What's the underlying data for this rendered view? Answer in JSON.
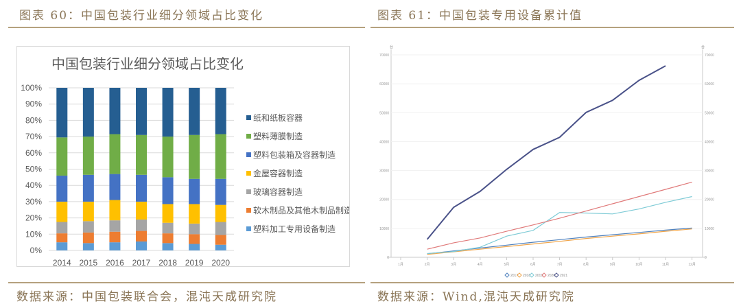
{
  "left_figure": {
    "caption": "图表 60：中国包装行业细分领域占比变化",
    "source": "数据来源：中国包装联合会，混沌天成研究院"
  },
  "right_figure": {
    "caption": "图表 61：中国包装专用设备累计值",
    "source": "数据来源：Wind,混沌天成研究院"
  },
  "chart_data": [
    {
      "type": "bar",
      "stacked": true,
      "percent": true,
      "title": "中国包装行业细分领域占比变化",
      "xlabel": "",
      "ylabel": "",
      "ylim": [
        0,
        100
      ],
      "yticks": [
        "0%",
        "10%",
        "20%",
        "30%",
        "40%",
        "50%",
        "60%",
        "70%",
        "80%",
        "90%",
        "100%"
      ],
      "categories": [
        "2014",
        "2015",
        "2016",
        "2017",
        "2018",
        "2019",
        "2020"
      ],
      "legend_position": "right",
      "grid": true,
      "series": [
        {
          "name": "塑料加工专用设备制造",
          "color": "#5b9bd5",
          "values": [
            5,
            4.5,
            5,
            5.5,
            4.5,
            4,
            3.5
          ]
        },
        {
          "name": "软木制品及其他木制品制造",
          "color": "#ed7d31",
          "values": [
            5.5,
            6.5,
            6.5,
            6.5,
            6,
            6,
            6
          ]
        },
        {
          "name": "玻璃容器制造",
          "color": "#a5a5a5",
          "values": [
            7,
            7,
            7,
            7,
            6.5,
            6.5,
            8
          ]
        },
        {
          "name": "金屋容器制造",
          "color": "#ffc000",
          "values": [
            12.5,
            12,
            12.5,
            11,
            11.5,
            12,
            10.5
          ]
        },
        {
          "name": "塑料包装箱及容器制造",
          "color": "#4472c4",
          "values": [
            16,
            16.5,
            16,
            16.5,
            16.5,
            15.5,
            16
          ]
        },
        {
          "name": "塑料薄膜制造",
          "color": "#70ad47",
          "values": [
            23.5,
            23.5,
            24.5,
            24.5,
            25,
            27,
            27.5
          ]
        },
        {
          "name": "纸和纸板容器",
          "color": "#255e91",
          "values": [
            30.5,
            30,
            28.5,
            29,
            30,
            29,
            28.5
          ]
        }
      ],
      "legend_order": [
        "纸和纸板容器",
        "塑料薄膜制造",
        "塑料包装箱及容器制造",
        "金屋容器制造",
        "玻璃容器制造",
        "软木制品及其他木制品制造",
        "塑料加工专用设备制造"
      ]
    },
    {
      "type": "line",
      "title": "",
      "unit_label": "台",
      "xlabel": "",
      "ylabel": "",
      "ylim": [
        0,
        70000
      ],
      "yticks": [
        "0",
        "10000",
        "20000",
        "30000",
        "40000",
        "50000",
        "60000",
        "70000"
      ],
      "secondary_yaxis": true,
      "x": [
        "1月",
        "2月",
        "3月",
        "4月",
        "5月",
        "6月",
        "7月",
        "8月",
        "9月",
        "10月",
        "11月",
        "12月"
      ],
      "legend_position": "bottom",
      "grid": true,
      "series": [
        {
          "name": "2017",
          "color": "#4f81bd",
          "values": [
            null,
            1200,
            2200,
            3200,
            4200,
            5200,
            6100,
            7000,
            7800,
            8600,
            9400,
            10100
          ]
        },
        {
          "name": "2018",
          "color": "#f0a54a",
          "values": [
            null,
            1000,
            1900,
            2800,
            3700,
            4600,
            5500,
            6500,
            7300,
            8100,
            9000,
            9800
          ]
        },
        {
          "name": "2019",
          "color": "#7ecbd6",
          "values": [
            null,
            1300,
            2000,
            3500,
            7300,
            9300,
            15500,
            15300,
            15000,
            16700,
            19000,
            21000
          ]
        },
        {
          "name": "2020",
          "color": "#e07a7a",
          "values": [
            null,
            2800,
            5000,
            6700,
            9000,
            11200,
            13500,
            16000,
            18500,
            21000,
            23500,
            26000
          ]
        },
        {
          "name": "2021",
          "color": "#4a5289",
          "values": [
            null,
            6200,
            17300,
            22800,
            30400,
            37300,
            41500,
            50100,
            54300,
            61200,
            66200,
            null
          ]
        }
      ]
    }
  ]
}
